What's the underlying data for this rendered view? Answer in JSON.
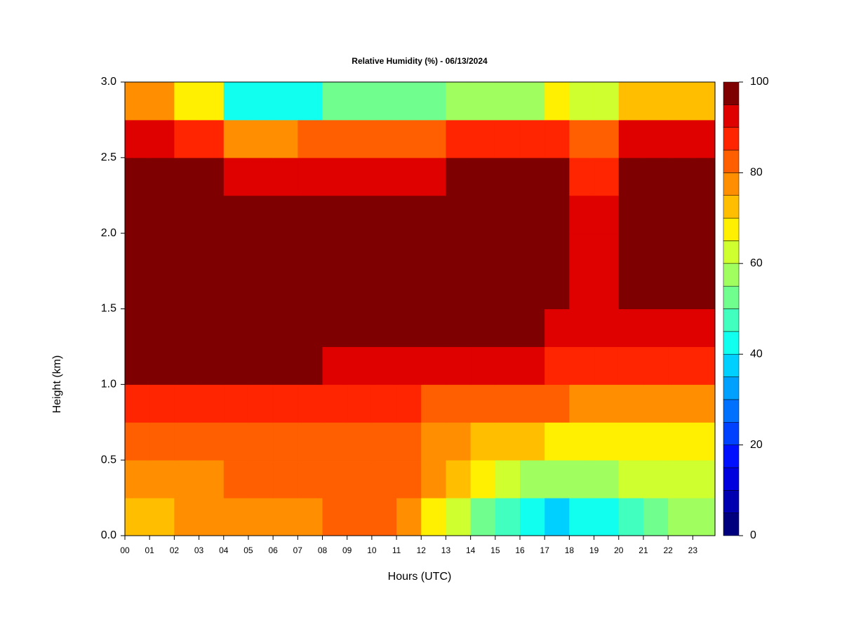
{
  "chart_data": {
    "type": "heatmap",
    "title": "Relative Humidity (%) - 06/13/2024",
    "x_label": "Hours (UTC)",
    "y_label": "Height (km)",
    "xbins": [
      0,
      1,
      2,
      3,
      4,
      5,
      6,
      7,
      8,
      9,
      10,
      11,
      12,
      13,
      14,
      15,
      16,
      17,
      18,
      19,
      20,
      21,
      22,
      23,
      23.9
    ],
    "ybins": [
      0,
      0.25,
      0.5,
      0.75,
      1,
      1.25,
      1.5,
      1.75,
      2,
      2.25,
      2.5,
      2.75,
      3
    ],
    "xlim": [
      0,
      23.9
    ],
    "ylim": [
      0,
      3
    ],
    "xticks": [
      {
        "value": 0,
        "label": "00"
      },
      {
        "value": 1,
        "label": "01"
      },
      {
        "value": 2,
        "label": "02"
      },
      {
        "value": 3,
        "label": "03"
      },
      {
        "value": 4,
        "label": "04"
      },
      {
        "value": 5,
        "label": "05"
      },
      {
        "value": 6,
        "label": "06"
      },
      {
        "value": 7,
        "label": "07"
      },
      {
        "value": 8,
        "label": "08"
      },
      {
        "value": 9,
        "label": "09"
      },
      10,
      11,
      12,
      13,
      14,
      15,
      16,
      17,
      18,
      19,
      20,
      21,
      22,
      23
    ],
    "yticks": [
      {
        "value": 0,
        "label": "0.0"
      },
      0.5,
      {
        "value": 1,
        "label": "1.0"
      },
      1.5,
      {
        "value": 2,
        "label": "2.0"
      },
      2.5,
      {
        "value": 3,
        "label": "3.0"
      }
    ],
    "z": [
      [
        72,
        72,
        76,
        76,
        76,
        76,
        76,
        76,
        82,
        82,
        82,
        78,
        68,
        60,
        52,
        47,
        42,
        38,
        40,
        40,
        45,
        50,
        55,
        58
      ],
      [
        78,
        78,
        78,
        78,
        80,
        80,
        80,
        80,
        83,
        83,
        83,
        80,
        75,
        70,
        65,
        60,
        57,
        55,
        55,
        57,
        60,
        62,
        63,
        62
      ],
      [
        80,
        80,
        80,
        80,
        80,
        80,
        80,
        80,
        84,
        84,
        84,
        82,
        78,
        78,
        72,
        72,
        72,
        68,
        68,
        68,
        68,
        68,
        68,
        68
      ],
      [
        88,
        88,
        88,
        88,
        88,
        88,
        88,
        88,
        87,
        87,
        87,
        87,
        84,
        84,
        84,
        80,
        80,
        80,
        78,
        78,
        78,
        78,
        78,
        78
      ],
      [
        95,
        95,
        95,
        95,
        95,
        95,
        95,
        95,
        92,
        92,
        92,
        93,
        93,
        93,
        90,
        90,
        90,
        88,
        88,
        88,
        85,
        85,
        85,
        85
      ],
      [
        97,
        97,
        97,
        97,
        97,
        97,
        97,
        97,
        97,
        97,
        97,
        97,
        97,
        97,
        96,
        96,
        96,
        94,
        94,
        94,
        90,
        90,
        90,
        90
      ],
      [
        97,
        97,
        97,
        97,
        97,
        97,
        97,
        97,
        97,
        97,
        97,
        97,
        97,
        97,
        97,
        97,
        97,
        97,
        92,
        92,
        97,
        95,
        97,
        97
      ],
      [
        97,
        97,
        97,
        97,
        97,
        97,
        97,
        97,
        97,
        97,
        97,
        97,
        97,
        97,
        97,
        97,
        97,
        97,
        90,
        90,
        97,
        97,
        97,
        97
      ],
      [
        97,
        97,
        97,
        97,
        97,
        97,
        97,
        97,
        97,
        97,
        97,
        97,
        97,
        97,
        97,
        97,
        97,
        97,
        90,
        90,
        97,
        97,
        97,
        97
      ],
      [
        97,
        97,
        97,
        97,
        93,
        93,
        93,
        93,
        93,
        93,
        93,
        93,
        93,
        96,
        96,
        96,
        96,
        96,
        88,
        88,
        96,
        96,
        96,
        96
      ],
      [
        92,
        92,
        88,
        88,
        75,
        75,
        75,
        80,
        80,
        80,
        80,
        80,
        80,
        85,
        85,
        85,
        85,
        88,
        80,
        80,
        90,
        90,
        90,
        90
      ],
      [
        75,
        75,
        65,
        65,
        42,
        42,
        42,
        42,
        50,
        50,
        50,
        50,
        50,
        55,
        55,
        55,
        55,
        68,
        60,
        60,
        72,
        72,
        72,
        72
      ]
    ],
    "levels": [
      0,
      5,
      10,
      15,
      20,
      25,
      30,
      35,
      40,
      45,
      50,
      55,
      60,
      65,
      70,
      75,
      80,
      85,
      90,
      95,
      100
    ],
    "colors": [
      "#00007f",
      "#0000b0",
      "#0000df",
      "#0010ff",
      "#0040ff",
      "#0070ff",
      "#00a0ff",
      "#00d0ff",
      "#10ffef",
      "#40ffbf",
      "#70ff8f",
      "#a0ff5f",
      "#d0ff2f",
      "#ffef00",
      "#ffbf00",
      "#ff8f00",
      "#ff5f00",
      "#ff2500",
      "#df0000",
      "#7f0000"
    ],
    "cbar_ticks": [
      0,
      20,
      40,
      60,
      80,
      100
    ]
  }
}
